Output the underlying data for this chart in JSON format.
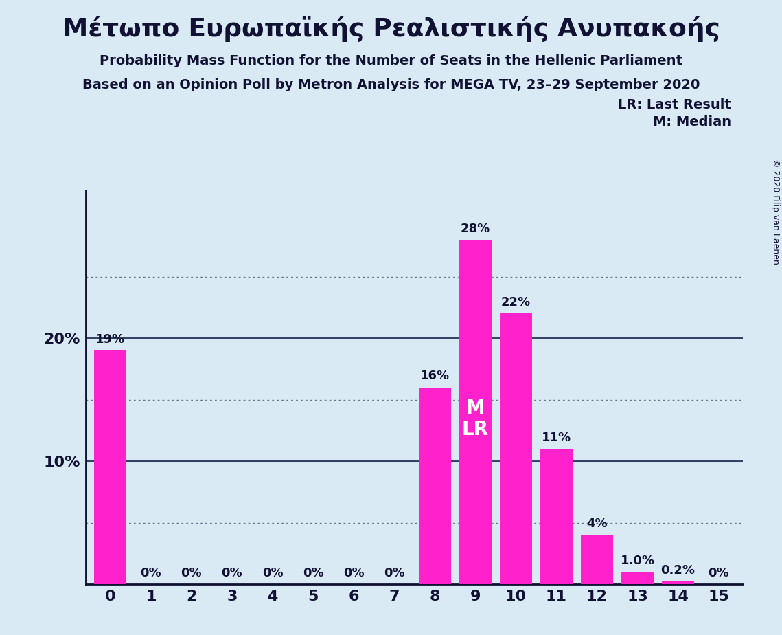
{
  "title_greek": "Μέτωπο Ευρωπαϊκής Ρεαλιστικής Ανυπακοής",
  "subtitle1": "Probability Mass Function for the Number of Seats in the Hellenic Parliament",
  "subtitle2": "Based on an Opinion Poll by Metron Analysis for MEGA TV, 23–29 September 2020",
  "copyright": "© 2020 Filip van Laenen",
  "legend_lr": "LR: Last Result",
  "legend_m": "M: Median",
  "categories": [
    0,
    1,
    2,
    3,
    4,
    5,
    6,
    7,
    8,
    9,
    10,
    11,
    12,
    13,
    14,
    15
  ],
  "values": [
    19,
    0,
    0,
    0,
    0,
    0,
    0,
    0,
    16,
    28,
    22,
    11,
    4,
    1.0,
    0.2,
    0
  ],
  "bar_color": "#FF22CC",
  "background_color": "#daeaf5",
  "text_color": "#111133",
  "bar_labels": [
    "19%",
    "0%",
    "0%",
    "0%",
    "0%",
    "0%",
    "0%",
    "0%",
    "16%",
    "28%",
    "22%",
    "11%",
    "4%",
    "1.0%",
    "0.2%",
    "0%"
  ],
  "median_bar": 9,
  "lr_bar": 9,
  "ylim": [
    0,
    32
  ],
  "dotted_yticks": [
    5,
    15,
    25
  ],
  "solid_yticks": [
    10,
    20
  ],
  "figsize": [
    11.39,
    9.24
  ],
  "dpi": 100
}
